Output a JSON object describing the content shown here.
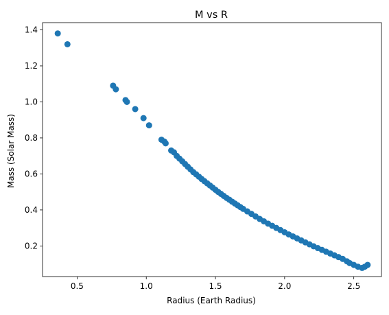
{
  "chart_data": {
    "type": "scatter",
    "title": "M vs R",
    "xlabel": "Radius (Earth Radius)",
    "ylabel": "Mass (Solar Mass)",
    "xlim": [
      0.25,
      2.7
    ],
    "ylim": [
      0.03,
      1.44
    ],
    "xticks": [
      0.5,
      1.0,
      1.5,
      2.0,
      2.5
    ],
    "xtick_labels": [
      "0.5",
      "1.0",
      "1.5",
      "2.0",
      "2.5"
    ],
    "yticks": [
      0.2,
      0.4,
      0.6,
      0.8,
      1.0,
      1.2,
      1.4
    ],
    "ytick_labels": [
      "0.2",
      "0.4",
      "0.6",
      "0.8",
      "1.0",
      "1.2",
      "1.4"
    ],
    "grid": false,
    "marker_color": "#1f77b4",
    "series": [
      {
        "points": [
          [
            0.36,
            1.38
          ],
          [
            0.43,
            1.32
          ],
          [
            0.76,
            1.09
          ],
          [
            0.78,
            1.07
          ],
          [
            0.85,
            1.01
          ],
          [
            0.86,
            1.0
          ],
          [
            0.92,
            0.96
          ],
          [
            0.98,
            0.91
          ],
          [
            1.02,
            0.87
          ],
          [
            1.11,
            0.79
          ],
          [
            1.13,
            0.78
          ],
          [
            1.14,
            0.77
          ],
          [
            1.18,
            0.73
          ],
          [
            1.2,
            0.72
          ],
          [
            1.22,
            0.7
          ],
          [
            1.24,
            0.685
          ],
          [
            1.26,
            0.67
          ],
          [
            1.28,
            0.655
          ],
          [
            1.3,
            0.64
          ],
          [
            1.32,
            0.625
          ],
          [
            1.34,
            0.61
          ],
          [
            1.36,
            0.598
          ],
          [
            1.38,
            0.585
          ],
          [
            1.4,
            0.572
          ],
          [
            1.42,
            0.56
          ],
          [
            1.44,
            0.548
          ],
          [
            1.46,
            0.536
          ],
          [
            1.48,
            0.524
          ],
          [
            1.5,
            0.512
          ],
          [
            1.52,
            0.5
          ],
          [
            1.54,
            0.489
          ],
          [
            1.56,
            0.478
          ],
          [
            1.58,
            0.467
          ],
          [
            1.6,
            0.457
          ],
          [
            1.62,
            0.446
          ],
          [
            1.64,
            0.436
          ],
          [
            1.66,
            0.426
          ],
          [
            1.68,
            0.416
          ],
          [
            1.7,
            0.406
          ],
          [
            1.73,
            0.392
          ],
          [
            1.76,
            0.378
          ],
          [
            1.79,
            0.364
          ],
          [
            1.82,
            0.35
          ],
          [
            1.85,
            0.337
          ],
          [
            1.88,
            0.324
          ],
          [
            1.91,
            0.312
          ],
          [
            1.94,
            0.3
          ],
          [
            1.97,
            0.288
          ],
          [
            2.0,
            0.276
          ],
          [
            2.03,
            0.264
          ],
          [
            2.06,
            0.253
          ],
          [
            2.09,
            0.242
          ],
          [
            2.12,
            0.231
          ],
          [
            2.15,
            0.22
          ],
          [
            2.18,
            0.209
          ],
          [
            2.21,
            0.198
          ],
          [
            2.24,
            0.188
          ],
          [
            2.27,
            0.178
          ],
          [
            2.3,
            0.168
          ],
          [
            2.33,
            0.158
          ],
          [
            2.36,
            0.148
          ],
          [
            2.39,
            0.138
          ],
          [
            2.42,
            0.128
          ],
          [
            2.45,
            0.115
          ],
          [
            2.47,
            0.105
          ],
          [
            2.5,
            0.095
          ],
          [
            2.53,
            0.085
          ],
          [
            2.56,
            0.078
          ],
          [
            2.58,
            0.085
          ],
          [
            2.6,
            0.095
          ]
        ]
      }
    ]
  }
}
